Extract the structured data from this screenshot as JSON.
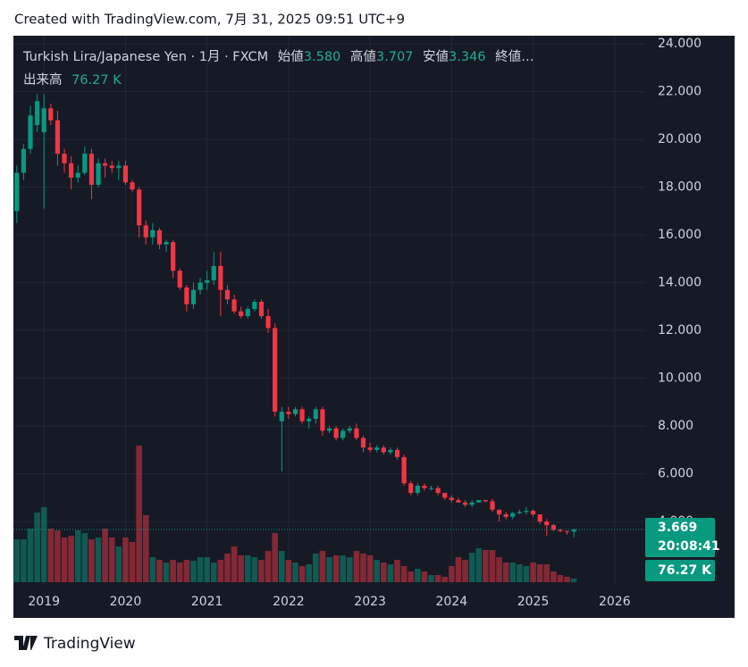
{
  "caption": "Created with TradingView.com, 7月 31, 2025 09:51 UTC+9",
  "brand": "TradingView",
  "chart_data": {
    "type": "candlestick",
    "header": {
      "symbol": "Turkish Lira/Japanese Yen · 1月 · FXCM",
      "open_label": "始値",
      "open": "3.580",
      "high_label": "高値",
      "high": "3.707",
      "low_label": "安値",
      "low": "3.346",
      "close_label": "終値…",
      "volume_label": "出来高"
    },
    "categories": [
      null,
      null,
      null,
      null,
      "2019",
      null,
      null,
      null,
      null,
      null,
      null,
      null,
      null,
      null,
      null,
      null,
      "2020",
      null,
      null,
      null,
      null,
      null,
      null,
      null,
      null,
      null,
      null,
      null,
      "2021",
      null,
      null,
      null,
      null,
      null,
      null,
      null,
      null,
      null,
      null,
      null,
      "2022",
      null,
      null,
      null,
      null,
      null,
      null,
      null,
      null,
      null,
      null,
      null,
      "2023",
      null,
      null,
      null,
      null,
      null,
      null,
      null,
      null,
      null,
      null,
      null,
      "2024",
      null,
      null,
      null,
      null,
      null,
      null,
      null,
      null,
      null,
      null,
      null,
      "2025",
      null,
      null,
      null,
      null,
      null,
      null,
      null,
      null,
      null,
      null,
      null,
      "2026",
      null,
      null,
      null,
      null
    ],
    "open": [
      17.0,
      18.6,
      19.6,
      20.6,
      20.3,
      21.3,
      20.8,
      19.4,
      19.0,
      18.4,
      18.6,
      19.4,
      18.1,
      19.0,
      18.9,
      18.8,
      18.9,
      18.2,
      17.9,
      16.4,
      15.9,
      16.2,
      15.6,
      15.7,
      14.5,
      13.8,
      13.1,
      13.7,
      14.0,
      14.1,
      14.7,
      13.7,
      13.3,
      12.8,
      12.6,
      12.9,
      13.2,
      12.6,
      12.1,
      8.2,
      8.6,
      8.5,
      8.7,
      8.2,
      8.3,
      8.7,
      7.8,
      7.9,
      7.5,
      7.8,
      7.9,
      7.5,
      7.1,
      7.0,
      7.1,
      6.9,
      7.0,
      6.7,
      5.6,
      5.2,
      5.5,
      5.4,
      5.4,
      5.2,
      5.0,
      4.9,
      4.8,
      4.7,
      4.8,
      4.9,
      4.85,
      4.5,
      4.3,
      4.2,
      4.35,
      4.4,
      4.45,
      4.3,
      4.0,
      3.85,
      3.65,
      3.6,
      3.58,
      null,
      null,
      null,
      null,
      null,
      null,
      null,
      null,
      null,
      null
    ],
    "high": [
      18.9,
      19.8,
      21.4,
      21.9,
      21.9,
      21.5,
      21.2,
      19.6,
      19.3,
      18.9,
      19.7,
      19.6,
      19.2,
      19.2,
      19.1,
      19.1,
      19.1,
      18.3,
      18.0,
      16.6,
      16.5,
      16.3,
      15.8,
      15.8,
      14.6,
      13.9,
      14.0,
      14.2,
      14.5,
      15.3,
      15.3,
      13.9,
      13.5,
      13.0,
      13.0,
      13.3,
      13.3,
      12.9,
      12.3,
      8.8,
      8.8,
      8.8,
      8.8,
      8.4,
      8.8,
      8.8,
      8.0,
      8.0,
      7.9,
      8.0,
      8.1,
      7.6,
      7.3,
      7.2,
      7.2,
      7.1,
      7.1,
      6.8,
      5.7,
      5.6,
      5.6,
      5.5,
      5.5,
      5.2,
      5.1,
      5.0,
      4.9,
      4.9,
      4.9,
      4.9,
      4.95,
      4.5,
      4.4,
      4.4,
      4.5,
      4.6,
      4.5,
      4.3,
      4.1,
      3.9,
      3.7,
      3.62,
      3.707,
      null,
      null,
      null,
      null,
      null,
      null,
      null,
      null,
      null,
      null
    ],
    "low": [
      16.5,
      18.3,
      19.4,
      20.3,
      17.1,
      20.6,
      18.9,
      18.6,
      17.9,
      18.2,
      18.5,
      17.5,
      18.0,
      18.4,
      18.6,
      18.3,
      18.1,
      17.8,
      15.9,
      15.6,
      15.6,
      15.4,
      15.3,
      14.2,
      13.7,
      12.8,
      12.9,
      13.5,
      13.7,
      13.9,
      12.6,
      13.1,
      12.7,
      12.5,
      12.5,
      12.8,
      12.5,
      11.9,
      8.4,
      6.1,
      8.3,
      8.4,
      8.1,
      7.9,
      8.1,
      7.6,
      7.7,
      7.4,
      7.4,
      7.7,
      7.4,
      6.9,
      6.9,
      6.9,
      6.8,
      6.8,
      6.6,
      5.5,
      5.1,
      5.1,
      5.3,
      5.3,
      5.1,
      4.9,
      4.8,
      4.8,
      4.6,
      4.6,
      4.8,
      4.8,
      4.4,
      4.0,
      4.1,
      4.1,
      4.3,
      4.3,
      4.2,
      3.9,
      3.4,
      3.6,
      3.55,
      3.45,
      3.346,
      null,
      null,
      null,
      null,
      null,
      null,
      null,
      null,
      null,
      null
    ],
    "close": [
      18.6,
      19.6,
      21.0,
      21.6,
      21.3,
      20.8,
      19.4,
      19.0,
      18.4,
      18.6,
      19.4,
      18.1,
      19.0,
      18.9,
      18.8,
      18.9,
      18.2,
      17.9,
      16.4,
      15.9,
      16.2,
      15.6,
      15.7,
      14.5,
      13.8,
      13.1,
      13.7,
      14.0,
      14.1,
      14.7,
      13.7,
      13.3,
      12.8,
      12.6,
      12.9,
      13.2,
      12.6,
      12.1,
      8.6,
      8.6,
      8.5,
      8.7,
      8.2,
      8.3,
      8.7,
      7.8,
      7.9,
      7.5,
      7.8,
      7.9,
      7.5,
      7.1,
      7.0,
      7.1,
      6.9,
      7.0,
      6.7,
      5.6,
      5.2,
      5.5,
      5.4,
      5.4,
      5.2,
      5.0,
      4.9,
      4.8,
      4.7,
      4.8,
      4.9,
      4.85,
      4.5,
      4.3,
      4.2,
      4.35,
      4.4,
      4.45,
      4.3,
      4.0,
      3.85,
      3.65,
      3.6,
      3.58,
      3.669,
      null,
      null,
      null,
      null,
      null,
      null,
      null,
      null,
      null,
      null
    ],
    "volume": [
      912,
      912,
      1140,
      1482,
      1596,
      1140,
      1102,
      950,
      988,
      1102,
      1045,
      912,
      950,
      1140,
      950,
      760,
      950,
      855,
      2907,
      1425,
      532,
      475,
      418,
      475,
      418,
      475,
      456,
      532,
      532,
      418,
      475,
      608,
      760,
      570,
      570,
      532,
      475,
      665,
      1045,
      665,
      475,
      418,
      342,
      380,
      608,
      665,
      532,
      570,
      570,
      532,
      665,
      608,
      570,
      475,
      418,
      380,
      475,
      342,
      228,
      285,
      228,
      152,
      152,
      114,
      342,
      532,
      475,
      627,
      722,
      684,
      684,
      532,
      418,
      418,
      380,
      342,
      418,
      380,
      380,
      228,
      152,
      114,
      76.27,
      null,
      null,
      null,
      null,
      null,
      null,
      null,
      null,
      null,
      null
    ],
    "volume_last_label": "76.27 K",
    "countdown": "20:08:41",
    "up_color": "#089981",
    "down_color": "#f23645",
    "ylim": [
      1.35,
      24.34
    ],
    "yticks": [
      {
        "value": 4,
        "label": "4.000"
      },
      {
        "value": 6,
        "label": "6.000"
      },
      {
        "value": 8,
        "label": "8.000"
      },
      {
        "value": 10,
        "label": "10.000"
      },
      {
        "value": 12,
        "label": "12.000"
      },
      {
        "value": 14,
        "label": "14.000"
      },
      {
        "value": 16,
        "label": "16.000"
      },
      {
        "value": 18,
        "label": "18.000"
      },
      {
        "value": 20,
        "label": "20.000"
      },
      {
        "value": 22,
        "label": "22.000"
      },
      {
        "value": 24,
        "label": "24.000"
      }
    ],
    "grid": true
  }
}
